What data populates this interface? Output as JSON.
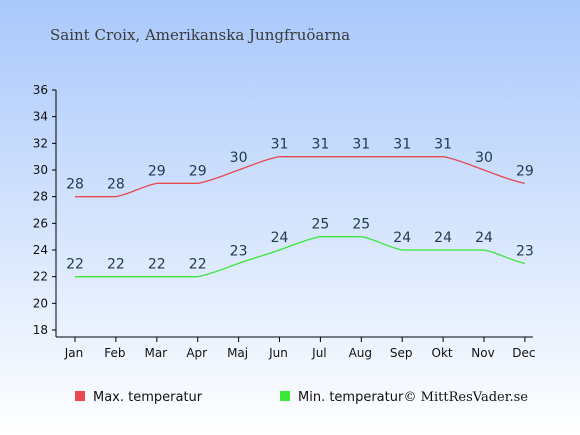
{
  "chart_data": {
    "type": "line",
    "title": "Saint Croix, Amerikanska Jungfruöarna",
    "categories": [
      "Jan",
      "Feb",
      "Mar",
      "Apr",
      "Maj",
      "Jun",
      "Jul",
      "Aug",
      "Sep",
      "Okt",
      "Nov",
      "Dec"
    ],
    "series": [
      {
        "name": "Max. temperatur",
        "color": "#e8484f",
        "values": [
          28,
          28,
          29,
          29,
          30,
          31,
          31,
          31,
          31,
          31,
          30,
          29
        ]
      },
      {
        "name": "Min. temperatur",
        "color": "#39e639",
        "values": [
          22,
          22,
          22,
          22,
          23,
          24,
          25,
          25,
          24,
          24,
          24,
          23
        ]
      }
    ],
    "ylim": [
      18,
      36
    ],
    "yticks": [
      18,
      20,
      22,
      24,
      26,
      28,
      30,
      32,
      34,
      36
    ],
    "grid": false,
    "legend": "bottom",
    "background": {
      "top": "#a9c8fb",
      "bottom": "#ffffff"
    }
  },
  "credit": "© MittResVader.se"
}
